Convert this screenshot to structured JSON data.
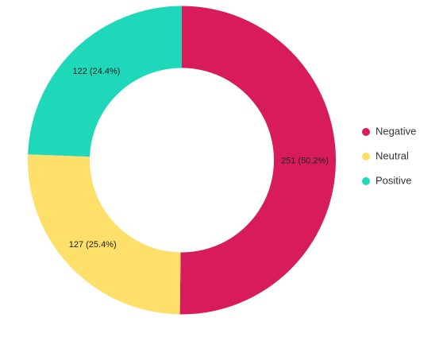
{
  "chart_data": {
    "type": "doughnut",
    "categories": [
      "Negative",
      "Neutral",
      "Positive"
    ],
    "values": [
      251,
      127,
      122
    ],
    "value_labels": [
      "251 (50.2%)",
      "127 (25.4%)",
      "122 (24.4%)"
    ],
    "colors": [
      "#d81b5a",
      "#fddf6a",
      "#1fd8b9"
    ],
    "legend": "right"
  }
}
